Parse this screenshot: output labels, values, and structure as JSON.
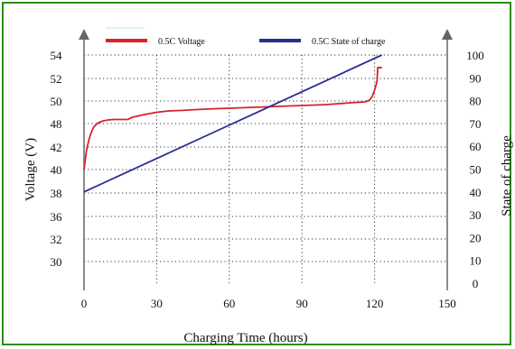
{
  "colors": {
    "border": "#2e8b1a",
    "voltage_line": "#d8232a",
    "soc_line": "#2a2f8f",
    "axis": "#666666",
    "grid": "#333333"
  },
  "chart_data": {
    "type": "line",
    "xlabel": "Charging Time (hours)",
    "ylabel_left": "Voltage (V)",
    "ylabel_right": "State of charge",
    "xlim": [
      0,
      150
    ],
    "x_ticks": [
      "0",
      "30",
      "60",
      "90",
      "120",
      "150"
    ],
    "x_tick_values": [
      0,
      30,
      60,
      90,
      120,
      150
    ],
    "y_left_ticks": [
      "30",
      "32",
      "36",
      "38",
      "40",
      "42",
      "44",
      "46",
      "48",
      "50",
      "52",
      "54"
    ],
    "y_right_ticks": [
      "0",
      "10",
      "20",
      "30",
      "40",
      "50",
      "60",
      "70",
      "80",
      "90",
      "100"
    ],
    "y_right_lim": [
      0,
      100
    ],
    "grid": true,
    "legend_position": "top",
    "series": [
      {
        "name": "0.5C Voltage",
        "axis": "left",
        "color": "#d8232a",
        "x": [
          0,
          1,
          2,
          3,
          4,
          5,
          6,
          8,
          10,
          12,
          15,
          18,
          20,
          25,
          30,
          35,
          40,
          50,
          60,
          70,
          80,
          90,
          100,
          110,
          116,
          118,
          119,
          120,
          121,
          121.3,
          121.6,
          122,
          123
        ],
        "y": [
          40.2,
          42.8,
          44.3,
          45.6,
          46.5,
          47.1,
          47.6,
          48.0,
          48.2,
          48.3,
          48.3,
          48.3,
          48.5,
          48.9,
          49.1,
          49.3,
          49.35,
          49.45,
          49.55,
          49.65,
          49.7,
          49.8,
          49.85,
          50.0,
          50.1,
          50.25,
          50.5,
          51.0,
          51.8,
          53.0,
          53.0,
          53.0,
          53.0
        ]
      },
      {
        "name": "0.5C State of charge",
        "axis": "right",
        "color": "#2a2f8f",
        "x": [
          0,
          123
        ],
        "y": [
          40,
          100
        ]
      }
    ]
  }
}
